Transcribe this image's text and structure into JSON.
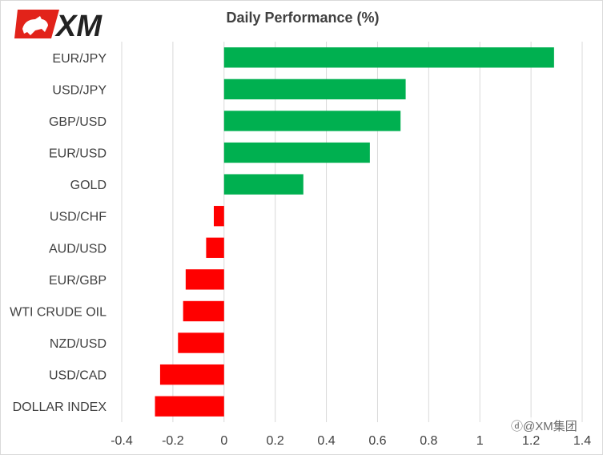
{
  "brand": {
    "logo_text": "XM",
    "logo_colors": {
      "red": "#e2231a",
      "dark": "#222222"
    }
  },
  "watermark": "ⓓ@XM集团",
  "chart_data": {
    "type": "bar",
    "orientation": "horizontal",
    "title": "Daily Performance (%)",
    "xlabel": "",
    "ylabel": "",
    "xlim": [
      -0.4,
      1.4
    ],
    "xticks": [
      -0.4,
      -0.2,
      0,
      0.2,
      0.4,
      0.6,
      0.8,
      1,
      1.2,
      1.4
    ],
    "xtick_labels": [
      "-0.4",
      "-0.2",
      "0",
      "0.2",
      "0.4",
      "0.6",
      "0.8",
      "1",
      "1.2",
      "1.4"
    ],
    "grid": "vertical",
    "categories": [
      "EUR/JPY",
      "USD/JPY",
      "GBP/USD",
      "EUR/USD",
      "GOLD",
      "USD/CHF",
      "AUD/USD",
      "EUR/GBP",
      "WTI CRUDE OIL",
      "NZD/USD",
      "USD/CAD",
      "DOLLAR INDEX"
    ],
    "values": [
      1.29,
      0.71,
      0.69,
      0.57,
      0.31,
      -0.04,
      -0.07,
      -0.15,
      -0.16,
      -0.18,
      -0.25,
      -0.27
    ],
    "colors": {
      "positive": "#00b050",
      "negative": "#ff0000",
      "grid": "#d9d9d9",
      "axis_text": "#404040"
    }
  }
}
